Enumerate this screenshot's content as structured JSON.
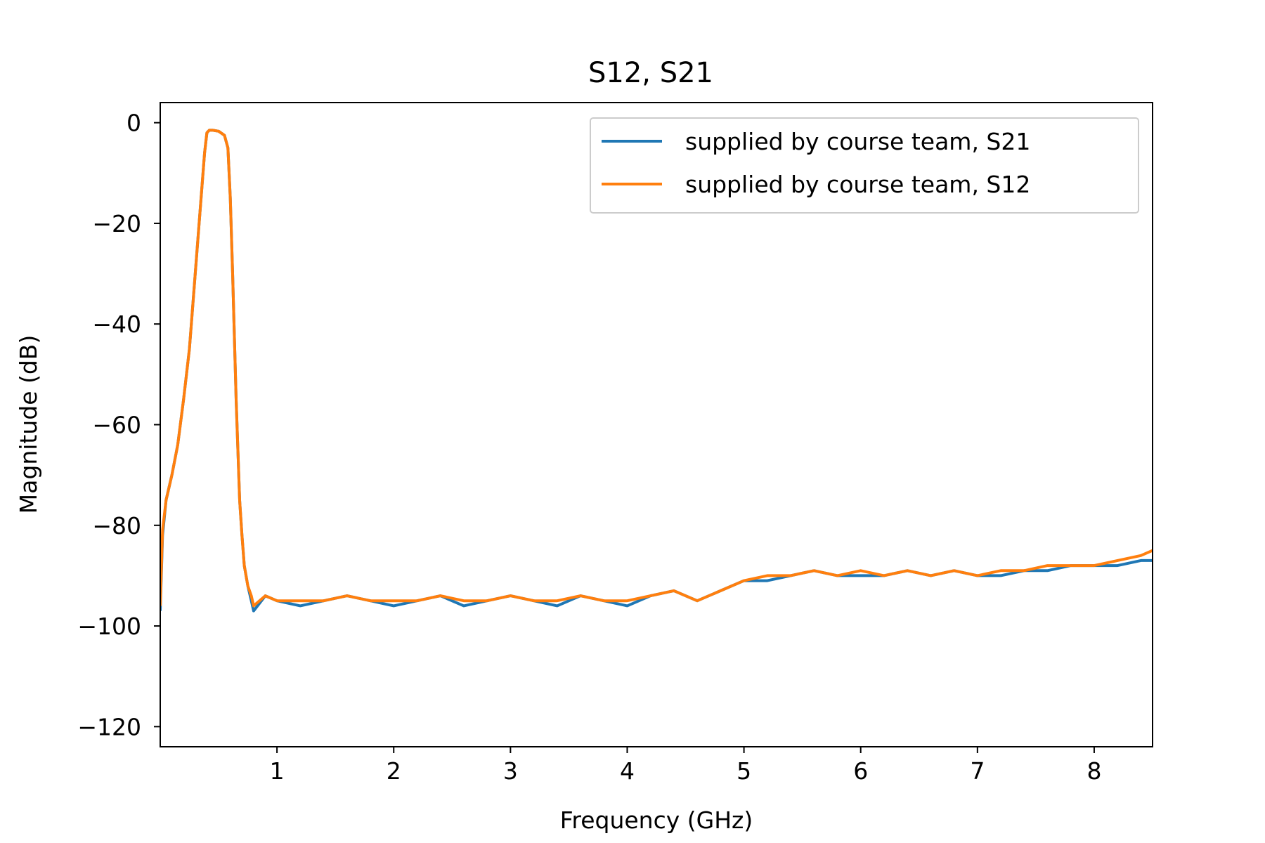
{
  "chart_data": {
    "type": "line",
    "title": "S12, S21",
    "xlabel": "Frequency (GHz)",
    "ylabel": "Magnitude (dB)",
    "xlim": [
      0.0,
      8.5
    ],
    "ylim": [
      -124,
      4
    ],
    "xticks": [
      1,
      2,
      3,
      4,
      5,
      6,
      7,
      8
    ],
    "xtick_labels": [
      "1",
      "2",
      "3",
      "4",
      "5",
      "6",
      "7",
      "8"
    ],
    "yticks": [
      0,
      -20,
      -40,
      -60,
      -80,
      -100,
      -120
    ],
    "ytick_labels": [
      "0",
      "−20",
      "−40",
      "−60",
      "−80",
      "−100",
      "−120"
    ],
    "grid": false,
    "legend_position": "top-right",
    "series": [
      {
        "name": "supplied by course team, S21",
        "color": "#1f77b4",
        "x": [
          0.0,
          0.02,
          0.05,
          0.1,
          0.15,
          0.2,
          0.25,
          0.3,
          0.35,
          0.38,
          0.4,
          0.42,
          0.45,
          0.5,
          0.55,
          0.58,
          0.6,
          0.62,
          0.65,
          0.68,
          0.7,
          0.72,
          0.75,
          0.78,
          0.8,
          0.9,
          1.0,
          1.2,
          1.4,
          1.6,
          1.8,
          2.0,
          2.2,
          2.4,
          2.6,
          2.8,
          3.0,
          3.2,
          3.4,
          3.6,
          3.8,
          4.0,
          4.2,
          4.4,
          4.6,
          4.8,
          5.0,
          5.2,
          5.4,
          5.6,
          5.8,
          6.0,
          6.2,
          6.4,
          6.6,
          6.8,
          7.0,
          7.2,
          7.4,
          7.6,
          7.8,
          8.0,
          8.2,
          8.4,
          8.5
        ],
        "values": [
          -97,
          -82,
          -75,
          -70,
          -64,
          -55,
          -45,
          -30,
          -15,
          -6,
          -2,
          -1.5,
          -1.5,
          -1.7,
          -2.5,
          -5,
          -15,
          -30,
          -55,
          -75,
          -82,
          -88,
          -92,
          -95,
          -97,
          -94,
          -95,
          -96,
          -95,
          -94,
          -95,
          -96,
          -95,
          -94,
          -96,
          -95,
          -94,
          -95,
          -96,
          -94,
          -95,
          -96,
          -94,
          -93,
          -95,
          -93,
          -91,
          -91,
          -90,
          -89,
          -90,
          -90,
          -90,
          -89,
          -90,
          -89,
          -90,
          -90,
          -89,
          -89,
          -88,
          -88,
          -88,
          -87,
          -87
        ]
      },
      {
        "name": "supplied by course team, S12",
        "color": "#ff7f0e",
        "x": [
          0.0,
          0.02,
          0.05,
          0.1,
          0.15,
          0.2,
          0.25,
          0.3,
          0.35,
          0.38,
          0.4,
          0.42,
          0.45,
          0.5,
          0.55,
          0.58,
          0.6,
          0.62,
          0.65,
          0.68,
          0.7,
          0.72,
          0.75,
          0.78,
          0.8,
          0.9,
          1.0,
          1.2,
          1.4,
          1.6,
          1.8,
          2.0,
          2.2,
          2.4,
          2.6,
          2.8,
          3.0,
          3.2,
          3.4,
          3.6,
          3.8,
          4.0,
          4.2,
          4.4,
          4.6,
          4.8,
          5.0,
          5.2,
          5.4,
          5.6,
          5.8,
          6.0,
          6.2,
          6.4,
          6.6,
          6.8,
          7.0,
          7.2,
          7.4,
          7.6,
          7.8,
          8.0,
          8.2,
          8.4,
          8.5
        ],
        "values": [
          -96,
          -81,
          -75,
          -70,
          -64,
          -55,
          -45,
          -30,
          -15,
          -6,
          -2,
          -1.5,
          -1.5,
          -1.7,
          -2.5,
          -5,
          -15,
          -30,
          -55,
          -75,
          -82,
          -88,
          -92,
          -94,
          -96,
          -94,
          -95,
          -95,
          -95,
          -94,
          -95,
          -95,
          -95,
          -94,
          -95,
          -95,
          -94,
          -95,
          -95,
          -94,
          -95,
          -95,
          -94,
          -93,
          -95,
          -93,
          -91,
          -90,
          -90,
          -89,
          -90,
          -89,
          -90,
          -89,
          -90,
          -89,
          -90,
          -89,
          -89,
          -88,
          -88,
          -88,
          -87,
          -86,
          -85
        ]
      }
    ]
  }
}
